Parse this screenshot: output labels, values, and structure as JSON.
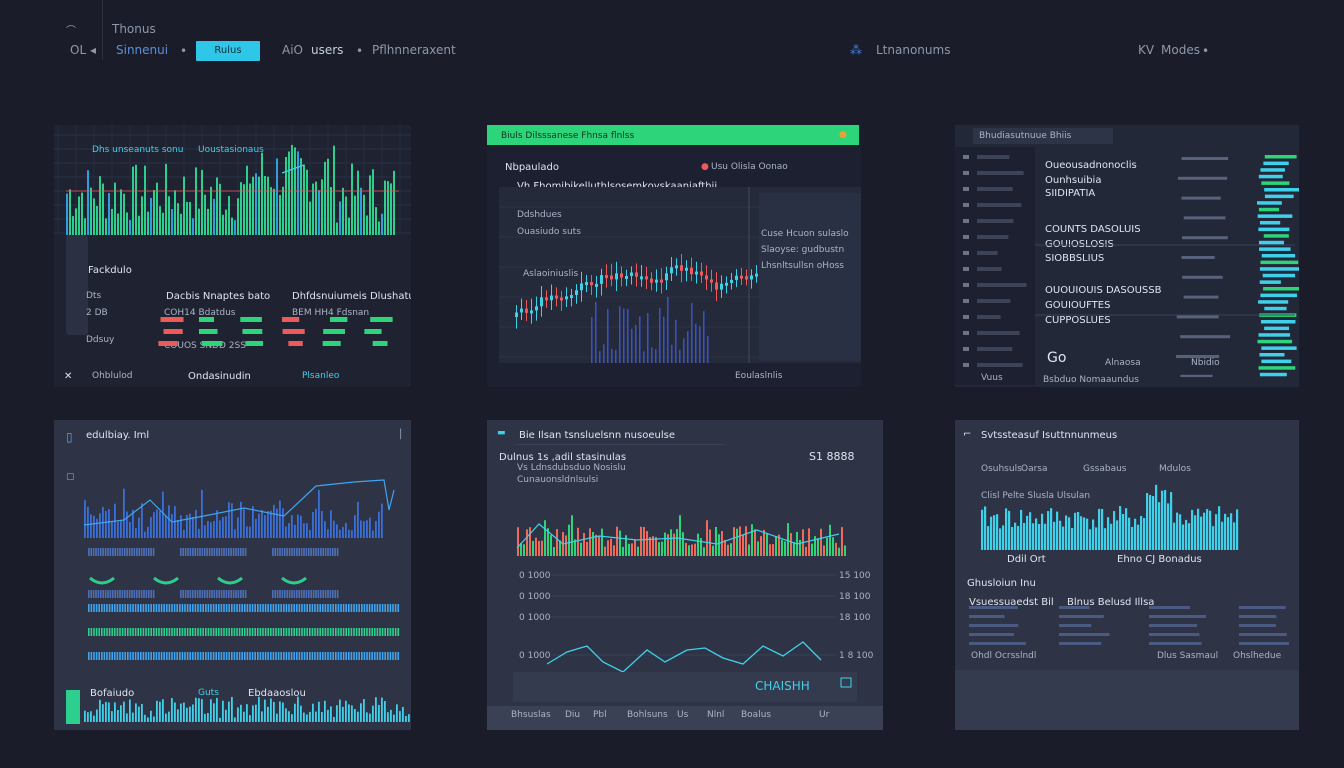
{
  "topbar": {
    "app_title": "Thonus",
    "logo_text": "OL",
    "nav_search": "Sinnenui",
    "active_tab": "Rulus",
    "nav_ao": "AiO",
    "nav_users": "users",
    "nav_perf": "Pflhnneraxent",
    "center_badge": "Ltnanonums",
    "right_kv": "KV",
    "right_modes": "Modes"
  },
  "panel1": {
    "chart_label_a": "Dhs unseanuts sonu",
    "chart_label_b": "Uoustasionaus",
    "section": "Fackdulo",
    "col_a": "Dacbis Nnaptes bato",
    "col_b": "Dhfdsnuiumeis Dlushatu",
    "row_labels": [
      "Dts",
      "2 DB",
      "Ddsuy"
    ],
    "cells": [
      "COH14 Bdatdus",
      "BEM HH4 Fdsnan",
      "COUOS SNDD 2SS"
    ],
    "footer_a": "Ohblulod",
    "footer_b": "Ondasinudin",
    "footer_c": "Plsanleo"
  },
  "panel2": {
    "header": "Biuls Dilsssanese Fhnsa flnlss",
    "title": "Nbpaulado",
    "subtitle": "Vh Fhomibikelluthlsosemkoyskaaniafthii",
    "legend": "Usu Olisla Oonao",
    "ind_a": "Ddshdues",
    "ind_b": "Ouasiudo suts",
    "ind_c": "Aslaoiniuslis",
    "info": [
      "Cuse Hcuon sulaslo",
      "Slaoyse: gudbustn",
      "Lhsnltsullsn oHoss"
    ],
    "footer": "Eoulaslnlis"
  },
  "panel3": {
    "tab": "Bhudiasutnuue Bhiis",
    "rows": [
      {
        "a": "Oueousadnonoclis",
        "b": "Ounhsuibia",
        "c": "SIIDIPATIA"
      },
      {
        "a": "COUNTS DASOLUIS",
        "b": "GOUIOSLOSIS",
        "c": "SIOBBSLIUS"
      },
      {
        "a": "OUOUIOUIS DASOUSSB",
        "b": "GOUIOUFTES",
        "c": "CUPPOSLUES"
      }
    ],
    "side_label": "Vuus",
    "footer": "Go",
    "footer_b": "Alnaosa",
    "footer_c": "Nbidio",
    "bottom": "Bsbduo Nomaaundus"
  },
  "panel4": {
    "title": "edulbiay. Iml",
    "legend_a": "Bofaiudo",
    "legend_b": "Guts",
    "legend_c": "Ebdaaoslou"
  },
  "panel5": {
    "title": "Bie Ilsan tsnsluelsnn nusoeulse",
    "sub": "Dulnus 1s ,adil stasinulas",
    "sub2": "Vs Ldnsdubsduo Nosislu",
    "sub3": "Cunauonsldnlsulsi",
    "big_value": "S1 8888",
    "y_ticks": [
      "0 1000",
      "0 1000",
      "0 1000",
      "0 1000"
    ],
    "y_ticks_r": [
      "15 100",
      "18 100",
      "18 100",
      "1 8 100"
    ],
    "stamp": "CHAISHH",
    "footer": [
      "Bhsuslas",
      "Diu",
      "Pbl",
      "Bohlsuns",
      "Us",
      "Nlnl",
      "Boalus",
      "Ur"
    ]
  },
  "panel6": {
    "title": "Svtssteasuf Isuttnnunmeus",
    "legend": [
      "Osuhsuls",
      "Oarsa",
      "Gssabaus",
      "Mdulos"
    ],
    "sub_label": "Clisl Pelte Slusla Ulsulan",
    "axis_a": "Ddil Ort",
    "axis_b": "Ehno CJ Bonadus",
    "section": "Ghusloiun Inu",
    "col_a": "Vsuessuaedst Bil",
    "col_b": "Blnus Belusd Illsa",
    "footer": [
      "Ohdl Ocrsslndl",
      "Dlus Sasmaul",
      "Ohslhedue"
    ]
  },
  "colors": {
    "accent_cyan": "#2fc7e8",
    "accent_green": "#2ed47a",
    "up": "#2ed47a",
    "down": "#ee5a5a",
    "blue": "#3a6fd8"
  }
}
